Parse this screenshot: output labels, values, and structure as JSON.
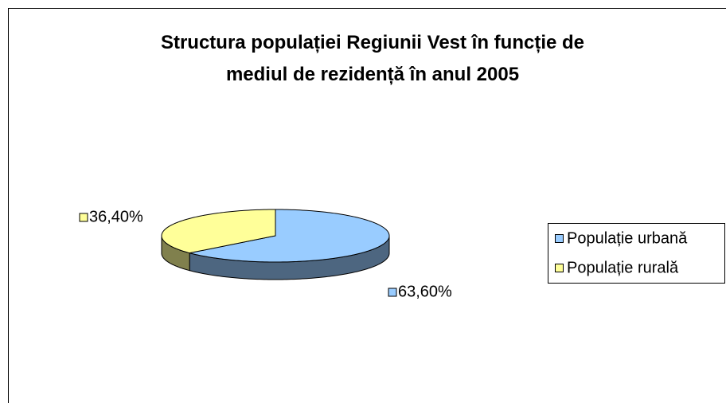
{
  "chart_data": {
    "type": "pie3d",
    "title": "Structura populației Regiunii Vest în funcție de\nmediul de rezidență în anul 2005",
    "categories": [
      "Populație urbană",
      "Populație rurală"
    ],
    "values": [
      63.6,
      36.4
    ],
    "value_labels": [
      "63,60%",
      "36,40%"
    ],
    "colors": [
      "#99ccff",
      "#ffff99"
    ],
    "legend": "right"
  }
}
